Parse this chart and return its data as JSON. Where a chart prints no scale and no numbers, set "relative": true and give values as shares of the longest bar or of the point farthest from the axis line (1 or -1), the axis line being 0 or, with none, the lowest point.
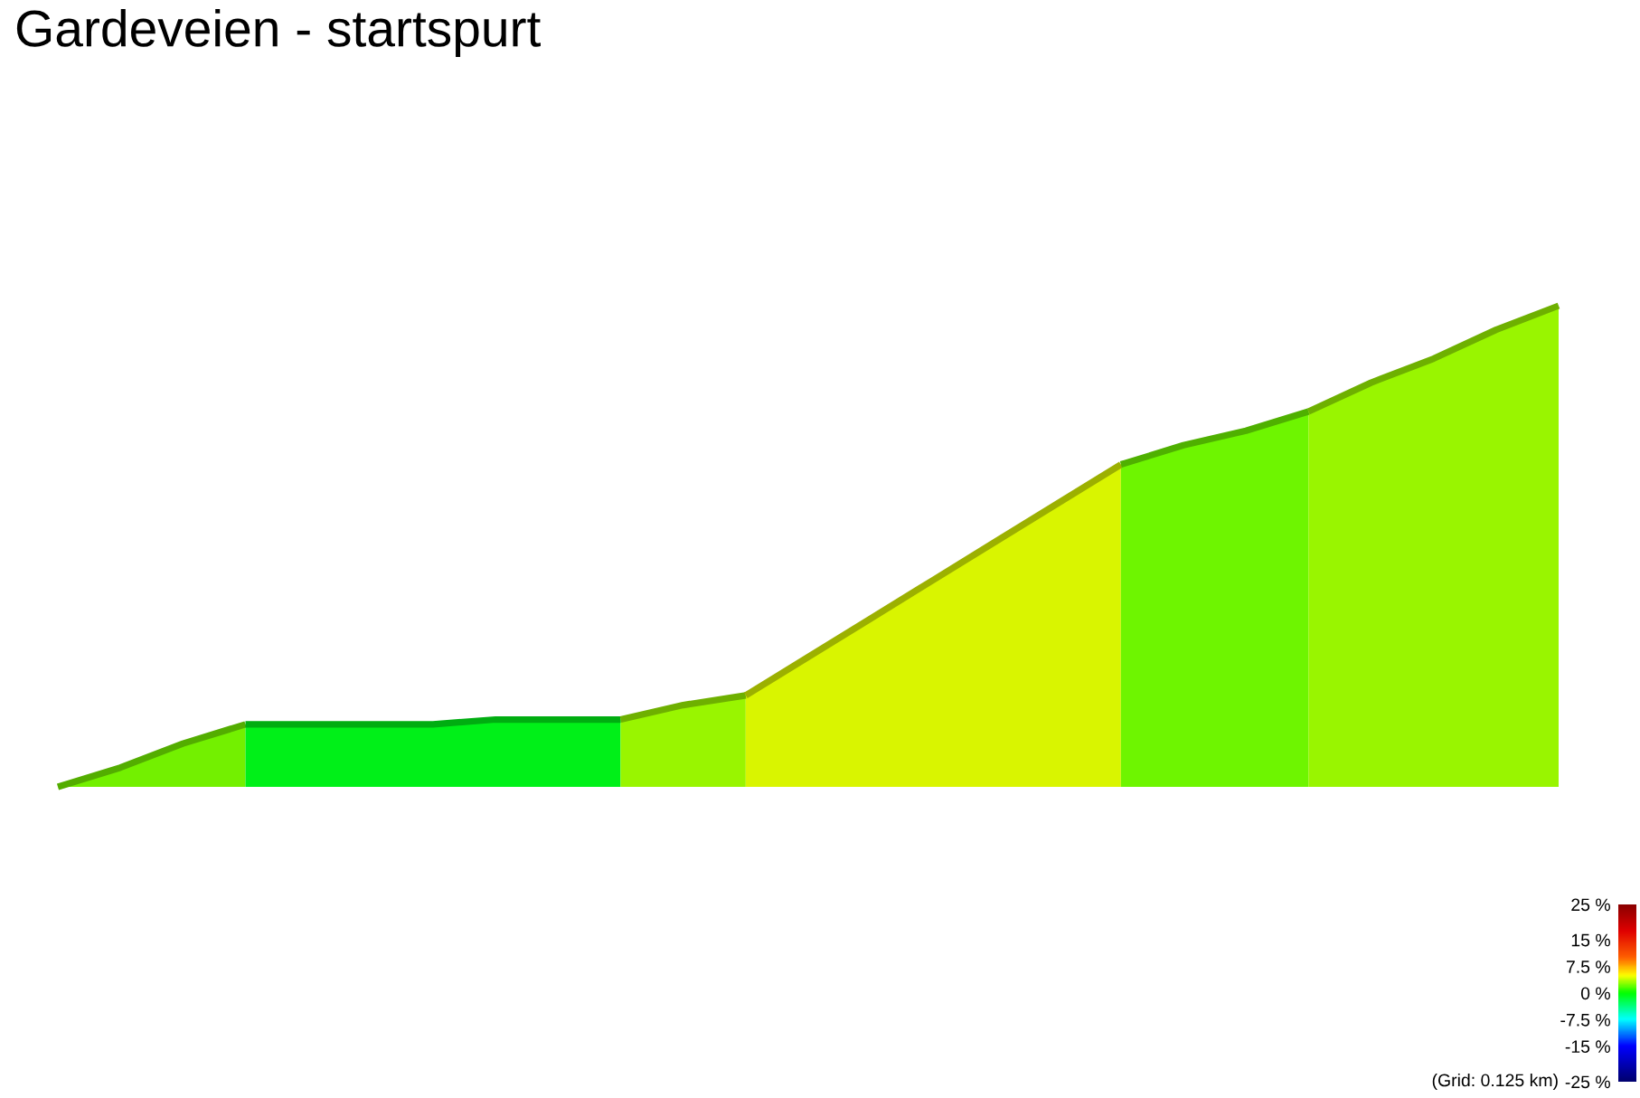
{
  "chart_data": {
    "type": "area",
    "title": "Gardeveien - startspurt",
    "relative": true,
    "categories": [
      null,
      null,
      null,
      null,
      null,
      null,
      null,
      null,
      null,
      null,
      null,
      null,
      null,
      null,
      null,
      null,
      null,
      null,
      null,
      null,
      null,
      null,
      null,
      null,
      null
    ],
    "series": [
      {
        "color": "#73f000",
        "values": [
          0,
          0.04,
          0.09,
          0.13,
          null,
          null,
          null,
          null,
          null,
          null,
          null,
          null,
          null,
          null,
          null,
          null,
          null,
          null,
          null,
          null,
          null,
          null,
          null,
          null,
          null
        ]
      },
      {
        "color": "#00f018",
        "values": [
          null,
          null,
          null,
          0.13,
          0.13,
          0.13,
          0.13,
          0.14,
          0.14,
          0.14,
          null,
          null,
          null,
          null,
          null,
          null,
          null,
          null,
          null,
          null,
          null,
          null,
          null,
          null,
          null
        ]
      },
      {
        "color": "#99f500",
        "values": [
          null,
          null,
          null,
          null,
          null,
          null,
          null,
          null,
          null,
          0.14,
          0.17,
          0.19,
          null,
          null,
          null,
          null,
          null,
          null,
          null,
          null,
          null,
          null,
          null,
          null,
          null
        ]
      },
      {
        "color": "#d9f500",
        "values": [
          null,
          null,
          null,
          null,
          null,
          null,
          null,
          null,
          null,
          null,
          null,
          0.19,
          0.27,
          0.35,
          0.43,
          0.51,
          0.59,
          0.67,
          null,
          null,
          null,
          null,
          null,
          null,
          null
        ]
      },
      {
        "color": "#6ef500",
        "values": [
          null,
          null,
          null,
          null,
          null,
          null,
          null,
          null,
          null,
          null,
          null,
          null,
          null,
          null,
          null,
          null,
          null,
          0.67,
          0.71,
          0.74,
          0.78,
          null,
          null,
          null,
          null
        ]
      },
      {
        "color": "#99f500",
        "values": [
          null,
          null,
          null,
          null,
          null,
          null,
          null,
          null,
          null,
          null,
          null,
          null,
          null,
          null,
          null,
          null,
          null,
          null,
          null,
          null,
          0.78,
          0.84,
          0.89,
          0.95,
          1
        ]
      }
    ],
    "clim": [
      -25,
      25
    ],
    "cticks": [
      {
        "value": 25,
        "label": "25 %"
      },
      {
        "value": 15,
        "label": "15 %"
      },
      {
        "value": 7.5,
        "label": "7.5 %"
      },
      {
        "value": 0,
        "label": "0 %"
      },
      {
        "value": -7.5,
        "label": "-7.5 %"
      },
      {
        "value": -15,
        "label": "-15 %"
      },
      {
        "value": -25,
        "label": "-25 %"
      }
    ],
    "annotations": [
      "(Grid: 0.125 km)"
    ]
  }
}
